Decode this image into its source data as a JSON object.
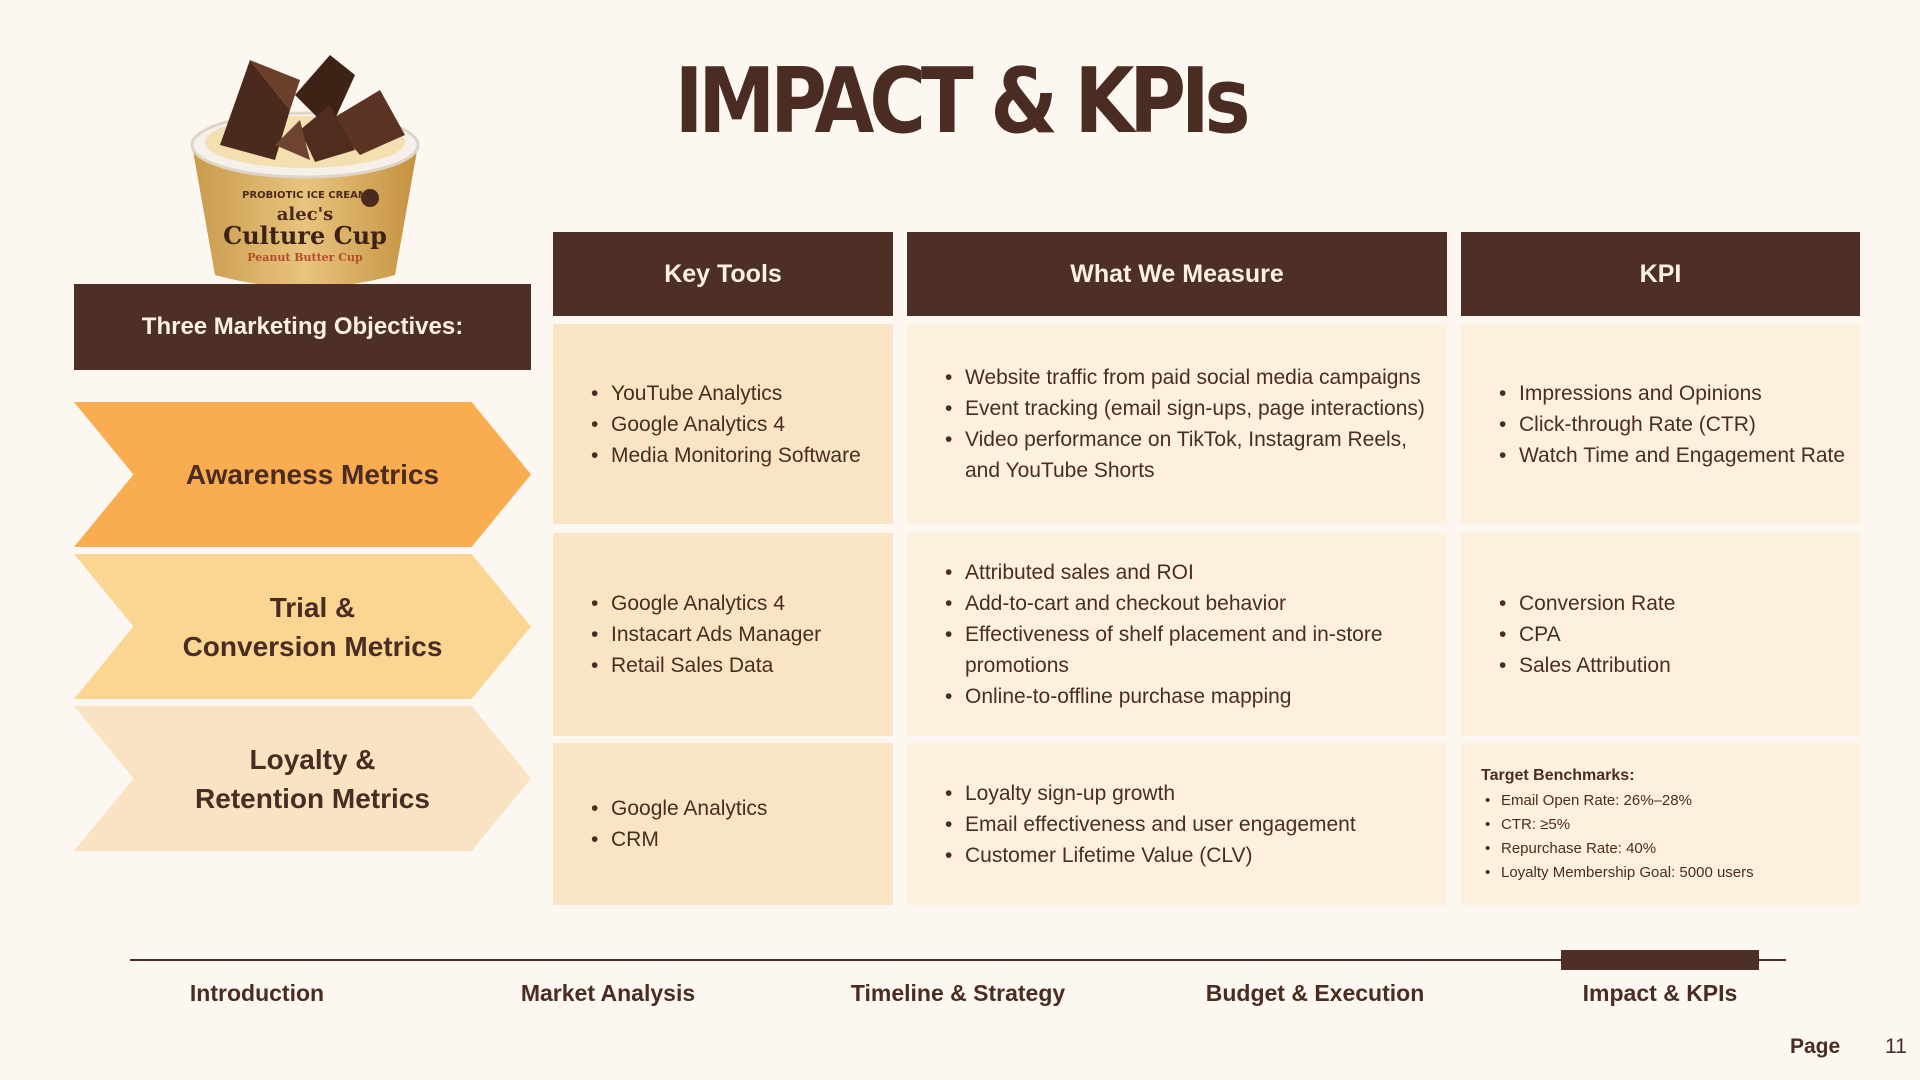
{
  "title": "IMPACT & KPIs",
  "objectives_header": "Three Marketing Objectives:",
  "objectives": [
    {
      "label_line1": "Awareness Metrics",
      "label_line2": ""
    },
    {
      "label_line1": "Trial &",
      "label_line2": "Conversion Metrics"
    },
    {
      "label_line1": "Loyalty &",
      "label_line2": "Retention Metrics"
    }
  ],
  "product_label": {
    "line1": "PROBIOTIC ICE CREAM",
    "line2": "alec's",
    "line3": "Culture Cup",
    "line4": "Peanut Butter Cup"
  },
  "columns": {
    "tools": "Key Tools",
    "measure": "What We Measure",
    "kpi": "KPI"
  },
  "rows": [
    {
      "tools": [
        "YouTube Analytics",
        "Google Analytics 4",
        "Media Monitoring Software"
      ],
      "measure": [
        "Website traffic from paid social media campaigns",
        "Event tracking (email sign-ups, page interactions)",
        "Video performance on TikTok, Instagram Reels, and YouTube Shorts"
      ],
      "kpi": [
        "Impressions and Opinions",
        "Click-through Rate (CTR)",
        "Watch Time and Engagement Rate"
      ]
    },
    {
      "tools": [
        "Google Analytics 4",
        "Instacart Ads Manager",
        "Retail Sales Data"
      ],
      "measure": [
        "Attributed sales and ROI",
        "Add-to-cart and checkout behavior",
        "Effectiveness of shelf placement and in-store promotions",
        "Online-to-offline purchase mapping"
      ],
      "kpi": [
        "Conversion Rate",
        "CPA",
        "Sales Attribution"
      ]
    },
    {
      "tools": [
        "Google Analytics",
        "CRM"
      ],
      "measure": [
        "Loyalty sign-up growth",
        "Email effectiveness and user engagement",
        "Customer Lifetime Value (CLV)"
      ],
      "kpi_title": "Target Benchmarks:",
      "kpi": [
        "Email Open Rate: 26%–28%",
        "CTR: ≥5%",
        "Repurchase Rate: 40%",
        "Loyalty Membership Goal: 5000 users"
      ]
    }
  ],
  "nav": {
    "items": [
      "Introduction",
      "Market Analysis",
      "Timeline & Strategy",
      "Budget & Execution",
      "Impact & KPIs"
    ],
    "active_index": 4
  },
  "page": {
    "label": "Page",
    "number": "11"
  },
  "colors": {
    "dark_brown": "#4e2f26",
    "orange": "#f9ac50",
    "light_orange": "#fbd693",
    "pale_orange": "#fae3c2",
    "cell_tools": "#f9e4c3",
    "cell_light": "#fdf1dd",
    "background": "#fdf7f1"
  }
}
